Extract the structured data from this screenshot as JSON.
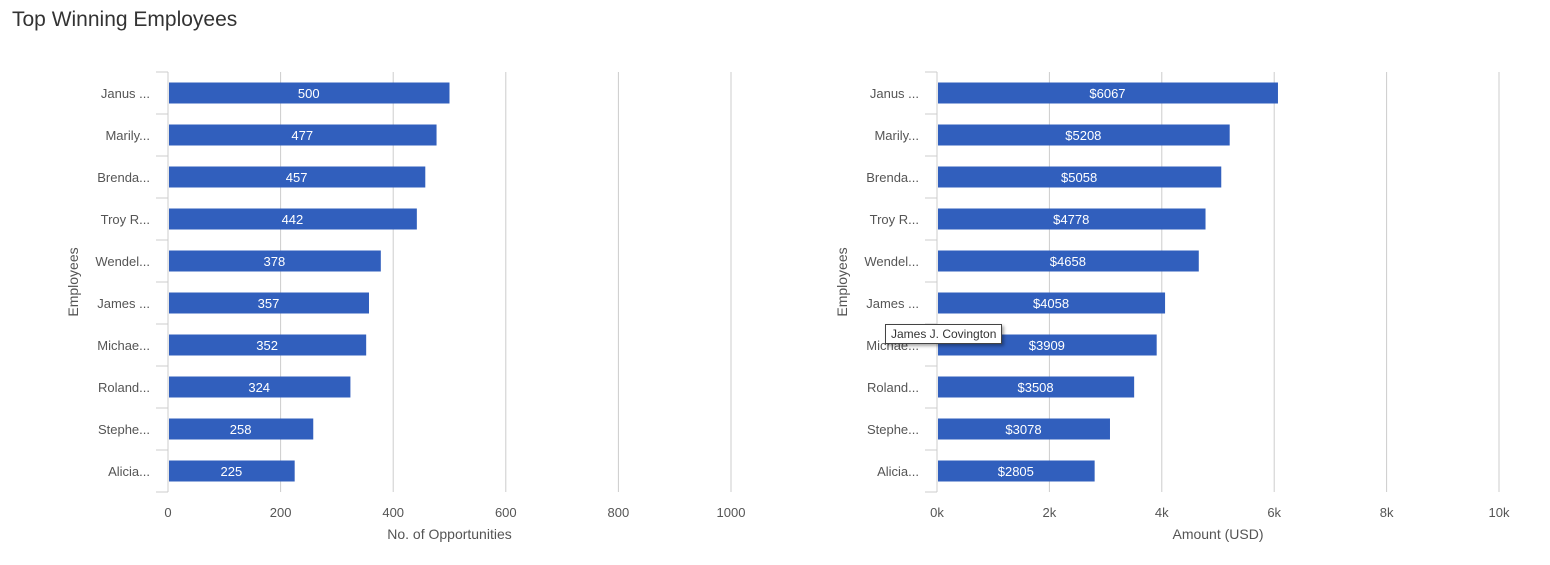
{
  "page": {
    "title": "Top Winning Employees"
  },
  "tooltip": {
    "text": "James J. Covington"
  },
  "colors": {
    "bar": "#315fbd",
    "grid": "#cccccc",
    "axis": "#cccccc",
    "bar_text": "#ffffff"
  },
  "chart_data": [
    {
      "type": "bar",
      "orientation": "horizontal",
      "categories": [
        "Janus ...",
        "Marily...",
        "Brenda...",
        "Troy R...",
        "Wendel...",
        "James ...",
        "Michae...",
        "Roland...",
        "Stephe...",
        "Alicia..."
      ],
      "values": [
        500,
        477,
        457,
        442,
        378,
        357,
        352,
        324,
        258,
        225
      ],
      "data_labels": [
        "500",
        "477",
        "457",
        "442",
        "378",
        "357",
        "352",
        "324",
        "258",
        "225"
      ],
      "xlabel": "No. of Opportunities",
      "ylabel": "Employees",
      "xlim": [
        0,
        1000
      ],
      "xticks": [
        0,
        200,
        400,
        600,
        800,
        1000
      ],
      "xtick_labels": [
        "0",
        "200",
        "400",
        "600",
        "800",
        "1000"
      ],
      "grid": true
    },
    {
      "type": "bar",
      "orientation": "horizontal",
      "categories": [
        "Janus ...",
        "Marily...",
        "Brenda...",
        "Troy R...",
        "Wendel...",
        "James ...",
        "Michae...",
        "Roland...",
        "Stephe...",
        "Alicia..."
      ],
      "values": [
        6067,
        5208,
        5058,
        4778,
        4658,
        4058,
        3909,
        3508,
        3078,
        2805
      ],
      "data_labels": [
        "$6067",
        "$5208",
        "$5058",
        "$4778",
        "$4658",
        "$4058",
        "$3909",
        "$3508",
        "$3078",
        "$2805"
      ],
      "xlabel": "Amount (USD)",
      "ylabel": "Employees",
      "xlim": [
        0,
        10000
      ],
      "xticks": [
        0,
        2000,
        4000,
        6000,
        8000,
        10000
      ],
      "xtick_labels": [
        "0k",
        "2k",
        "4k",
        "6k",
        "8k",
        "10k"
      ],
      "grid": true
    }
  ]
}
